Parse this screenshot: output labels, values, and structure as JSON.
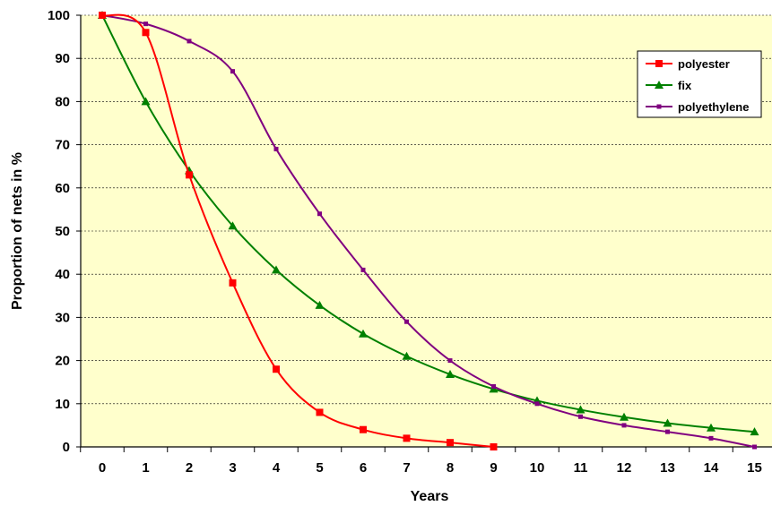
{
  "chart_data": {
    "type": "line",
    "xlabel": "Years",
    "ylabel": "Proportion of nets in %",
    "xlim": [
      0,
      15
    ],
    "ylim": [
      0,
      100
    ],
    "x_ticks": [
      "0",
      "1",
      "2",
      "3",
      "4",
      "5",
      "6",
      "7",
      "8",
      "9",
      "10",
      "11",
      "12",
      "13",
      "14",
      "15"
    ],
    "y_ticks": [
      "0",
      "10",
      "20",
      "30",
      "40",
      "50",
      "60",
      "70",
      "80",
      "90",
      "100"
    ],
    "grid": "horizontal dashed",
    "legend_position": "top-right",
    "plot_background": "#FFFFCC",
    "series": [
      {
        "name": "polyester",
        "color": "#FF0000",
        "marker": "square",
        "x": [
          0,
          1,
          2,
          3,
          4,
          5,
          6,
          7,
          8,
          9
        ],
        "y": [
          100,
          96,
          63,
          38,
          18,
          8,
          4,
          2,
          1,
          0
        ]
      },
      {
        "name": "fix",
        "color": "#008000",
        "marker": "triangle",
        "x": [
          0,
          1,
          2,
          3,
          4,
          5,
          6,
          7,
          8,
          9,
          10,
          11,
          12,
          13,
          14,
          15
        ],
        "y": [
          100,
          80,
          64,
          51.2,
          41,
          32.8,
          26.2,
          21,
          16.8,
          13.4,
          10.7,
          8.6,
          6.9,
          5.5,
          4.4,
          3.5
        ]
      },
      {
        "name": "polyethylene",
        "color": "#800080",
        "marker": "small-square",
        "x": [
          0,
          1,
          2,
          3,
          4,
          5,
          6,
          7,
          8,
          9,
          10,
          11,
          12,
          13,
          14,
          15
        ],
        "y": [
          100,
          98,
          94,
          87,
          69,
          54,
          41,
          29,
          20,
          14,
          10,
          7,
          5,
          3.5,
          2,
          0
        ]
      }
    ]
  }
}
